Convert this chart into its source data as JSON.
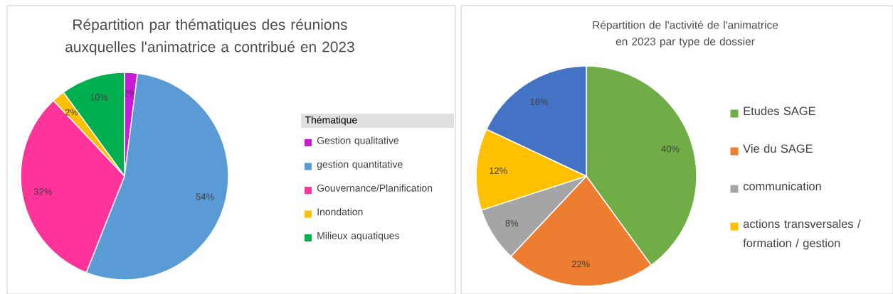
{
  "chart_data": [
    {
      "type": "pie",
      "title": "Répartition par thématiques des réunions auxquelles l'animatrice a contribué en 2023",
      "legend_title": "Thématique",
      "legend": "right",
      "categories": [
        "Gestion qualitative",
        "gestion quantitative",
        "Gouvernance/Planification",
        "Inondation",
        "Milieux aquatiques"
      ],
      "values": [
        2,
        54,
        32,
        2,
        10
      ],
      "colors": [
        "#c71bd6",
        "#5b9bd5",
        "#ff3399",
        "#ffc000",
        "#00b050"
      ],
      "value_labels": [
        "2%",
        "54%",
        "32%",
        "2%",
        "10%"
      ]
    },
    {
      "type": "pie",
      "title": "Répartition de l'activité de l'animatrice en 2023 par type de dossier",
      "legend": "right",
      "categories": [
        "Etudes SAGE",
        "Vie du SAGE",
        "communication",
        "actions transversales / formation / gestion",
        null
      ],
      "values": [
        40,
        22,
        8,
        12,
        18
      ],
      "colors": [
        "#70ad47",
        "#ed7d31",
        "#a5a5a5",
        "#ffc000",
        "#4472c4"
      ],
      "value_labels": [
        "40%",
        "22%",
        "8%",
        "12%",
        "18%"
      ]
    }
  ]
}
